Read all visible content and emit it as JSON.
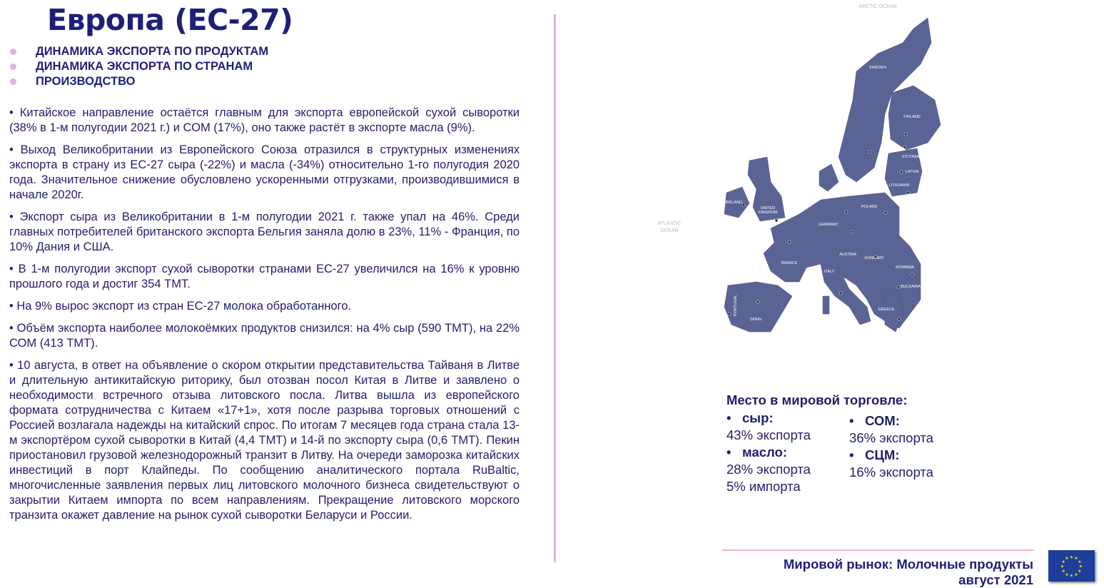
{
  "title": "Европа (ЕС-27)",
  "nav": [
    {
      "label": "ДИНАМИКА ЭКСПОРТА ПО ПРОДУКТАМ"
    },
    {
      "label": "ДИНАМИКА ЭКСПОРТА ПО СТРАНАМ"
    },
    {
      "label": "ПРОИЗВОДСТВО"
    }
  ],
  "paragraphs": [
    "•   Китайское направление остаётся главным для экспорта европейской сухой сыворотки (38% в 1-м полугодии 2021 г.) и СОМ (17%), оно также растёт в экспорте масла (9%).",
    "•   Выход Великобритании из Европейского Союза отразился в структурных изменениях экспорта в страну из ЕС-27 сыра (-22%) и масла (-34%) относительно 1-го полугодия 2020 года. Значительное снижение обусловлено ускоренными отгрузками, производившимися в начале 2020г.",
    "•   Экспорт сыра из Великобритании в 1-м полугодии 2021 г. также упал на 46%. Среди главных потребителей британского экспорта Бельгия заняла долю в 23%, 11% - Франция, по 10% Дания и США.",
    "•   В 1-м полугодии экспорт сухой сыворотки странами ЕС-27 увеличился на 16% к уровню прошлого года и достиг 354 ТМТ.",
    "•   На 9% вырос экспорт из стран ЕС-27 молока обработанного.",
    "•   Объём экспорта наиболее молокоёмких продуктов снизился: на 4% сыр (590 ТМТ), на 22% СОМ (413 ТМТ).",
    "•   10 августа, в ответ на объявление о скором открытии представительства Тайваня в Литве и длительную антикитайскую риторику, был отозван посол Китая в Литве и заявлено о необходимости встречного отзыва литовского посла. Литва вышла из европейского формата сотрудничества с Китаем «17+1», хотя после разрыва торговых отношений с Россией возлагала надежды на китайский спрос. По итогам 7 месяцев года страна стала 13-м экспортёром сухой сыворотки в Китай (4,4 ТМТ) и 14-й по экспорту сыра (0,6 ТМТ). Пекин приостановил грузовой железнодорожный транзит в Литву. На очереди заморозка китайских инвестиций в порт Клайпеды. По сообщению аналитического портала RuBaltic, многочисленные заявления первых лиц литовского молочного бизнеса свидетельствуют о закрытии Китаем импорта по всем направлениям. Прекращение литовского морского транзита окажет давление на рынок сухой сыворотки Беларуси и России."
  ],
  "map": {
    "color": "#5a6494",
    "labels": {
      "arctic": "ARCTIC OCEAN",
      "atlantic1": "ATLANTIC",
      "atlantic2": "OCEAN",
      "sweden": "SWEDEN",
      "finland": "FINLAND",
      "estonia": "ESTONIA",
      "latvia": "LATVIA",
      "lithuania": "LITHUANIA",
      "poland": "POLAND",
      "germany": "GERMANY",
      "france": "FRANCE",
      "italy": "ITALY",
      "spain": "SPAIN",
      "romania": "ROMANIA",
      "bulgaria": "BULGARIA",
      "hungary": "HUNGARY",
      "austria": "AUSTRIA",
      "ireland": "IRELAND",
      "uk1": "UNITED",
      "uk2": "KINGDOM",
      "portugal": "PORTUGAL",
      "greece": "GREECE"
    }
  },
  "trade": {
    "title": "Место в мировой торговле:",
    "left": [
      {
        "product": "сыр:",
        "values": [
          "43% экспорта"
        ]
      },
      {
        "product": "масло:",
        "values": [
          "28% экспорта",
          "5% импорта"
        ]
      }
    ],
    "right": [
      {
        "product": "СОМ:",
        "values": [
          "36% экспорта"
        ]
      },
      {
        "product": "СЦМ:",
        "values": [
          "16% экспорта"
        ]
      }
    ]
  },
  "footer": {
    "line1": "Мировой рынок: Молочные продукты",
    "line2": "август 2021"
  },
  "colors": {
    "title": "#1f1f78",
    "accent_bullet": "#d7b7dd",
    "divider": "#f7b7bd",
    "eu_flag": "#1d3e9a",
    "eu_stars": "#ffdd00"
  }
}
